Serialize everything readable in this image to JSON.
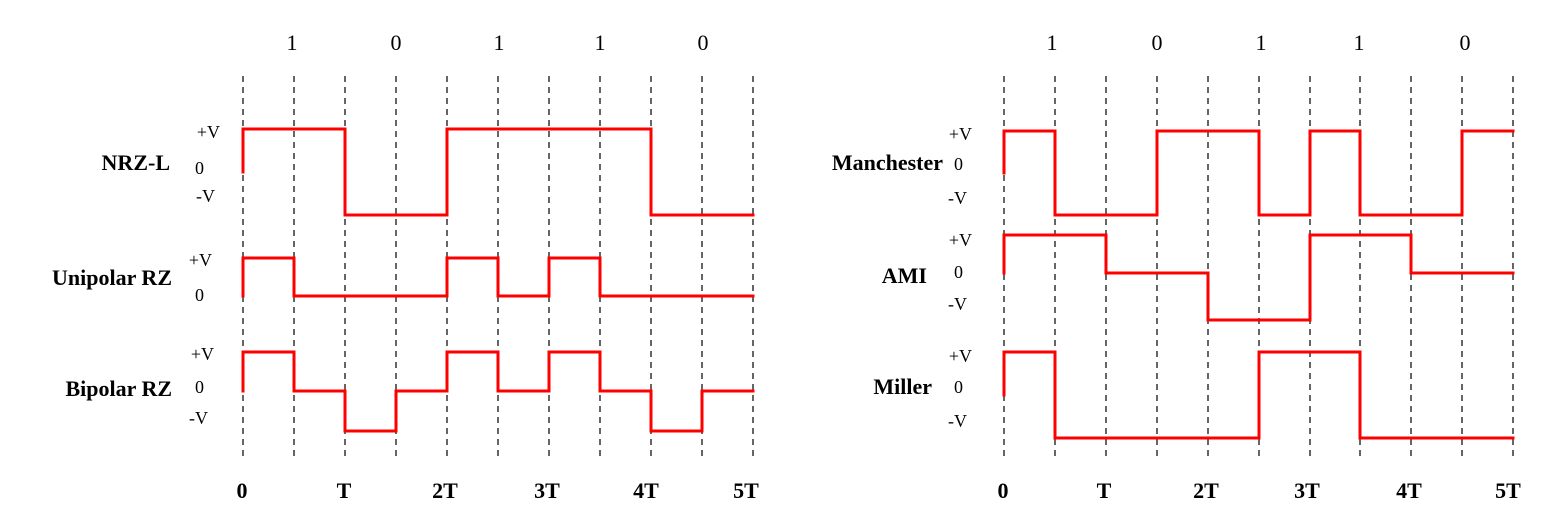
{
  "panels": [
    {
      "id": "left",
      "bits": [
        "1",
        "0",
        "1",
        "1",
        "0"
      ],
      "time_labels": [
        "0",
        "T",
        "2T",
        "3T",
        "4T",
        "5T"
      ],
      "signals": [
        {
          "name": "NRZ-L",
          "levels": [
            "+V",
            "0",
            "-V"
          ],
          "segments": [
            1,
            1,
            -1,
            -1,
            1,
            1,
            1,
            1,
            -1,
            -1
          ]
        },
        {
          "name": "Unipolar RZ",
          "levels": [
            "+V",
            "0"
          ],
          "segments": [
            1,
            0,
            0,
            0,
            1,
            0,
            1,
            0,
            0,
            0
          ]
        },
        {
          "name": "Bipolar RZ",
          "levels": [
            "+V",
            "0",
            "-V"
          ],
          "segments": [
            1,
            0,
            -1,
            0,
            1,
            0,
            1,
            0,
            -1,
            0
          ]
        }
      ]
    },
    {
      "id": "right",
      "bits": [
        "1",
        "0",
        "1",
        "1",
        "0"
      ],
      "time_labels": [
        "0",
        "T",
        "2T",
        "3T",
        "4T",
        "5T"
      ],
      "signals": [
        {
          "name": "Manchester",
          "levels": [
            "+V",
            "0",
            "-V"
          ],
          "segments": [
            1,
            -1,
            -1,
            1,
            1,
            -1,
            1,
            -1,
            -1,
            1
          ]
        },
        {
          "name": "AMI",
          "levels": [
            "+V",
            "0",
            "-V"
          ],
          "segments": [
            1,
            1,
            0,
            0,
            -1,
            -1,
            1,
            1,
            0,
            0
          ]
        },
        {
          "name": "Miller",
          "levels": [
            "+V",
            "0",
            "-V"
          ],
          "segments": [
            1,
            -1,
            -1,
            -1,
            -1,
            1,
            1,
            -1,
            -1,
            -1
          ]
        }
      ]
    }
  ],
  "colors": {
    "signal": "#ff0000",
    "grid": "#000000",
    "text": "#000000"
  }
}
